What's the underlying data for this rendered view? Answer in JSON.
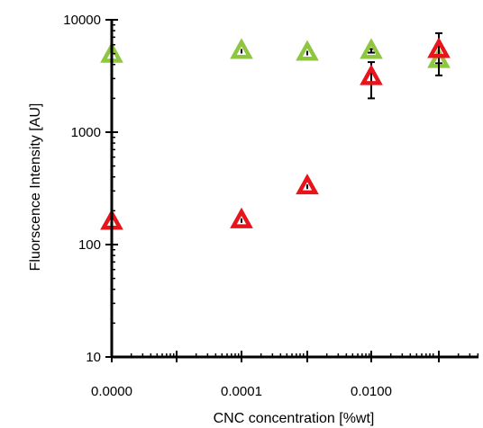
{
  "chart_data": {
    "type": "scatter",
    "xlabel": "CNC concentration [%wt]",
    "ylabel": "Fluorscence Intensity [AU]",
    "y_scale": "log",
    "ylim": [
      10,
      10000
    ],
    "y_ticks": [
      {
        "value": 10,
        "label": "10"
      },
      {
        "value": 100,
        "label": "100"
      },
      {
        "value": 1000,
        "label": "1000"
      },
      {
        "value": 10000,
        "label": "10000"
      }
    ],
    "x_ticks": [
      {
        "label": "0.0000"
      },
      {
        "label": "0.0001"
      },
      {
        "label": "0.0100"
      }
    ],
    "grid": false,
    "legend": "none",
    "series": [
      {
        "color": "#8fc63f",
        "marker": "triangle",
        "points": [
          {
            "x": "0.0000",
            "y": 4900
          },
          {
            "x": "0.0001",
            "y": 5300
          },
          {
            "x": "0.0010",
            "y": 5100
          },
          {
            "x": "0.0100",
            "y": 5300,
            "err": 200
          },
          {
            "x": "0.1000",
            "y": 4400,
            "err": 300
          }
        ]
      },
      {
        "color": "#e8141c",
        "marker": "triangle",
        "points": [
          {
            "x": "0.0000",
            "y": 160
          },
          {
            "x": "0.0001",
            "y": 165
          },
          {
            "x": "0.0010",
            "y": 330
          },
          {
            "x": "0.0100",
            "y": 3100,
            "err": 1100
          },
          {
            "x": "0.1000",
            "y": 5400,
            "err": 2200
          }
        ]
      }
    ]
  }
}
